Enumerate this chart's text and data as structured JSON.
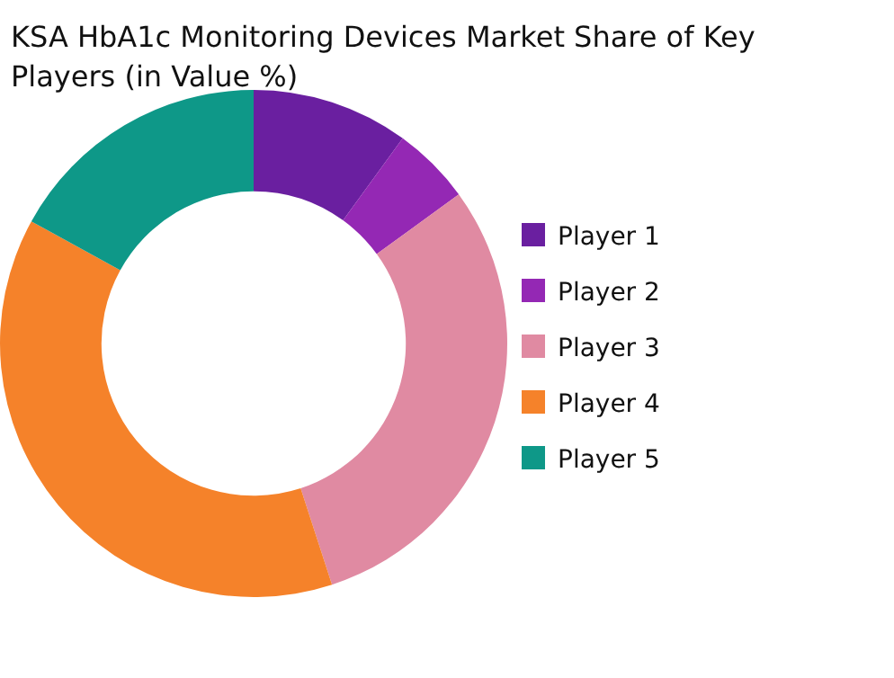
{
  "chart_data": {
    "type": "donut",
    "title": "KSA HbA1c Monitoring Devices Market Share of Key Players (in Value %)",
    "categories": [
      "Player 1",
      "Player 2",
      "Player 3",
      "Player 4",
      "Player 5"
    ],
    "values": [
      10,
      5,
      30,
      38,
      17
    ],
    "colors": [
      "#6a1fa0",
      "#9428b4",
      "#e08aa2",
      "#f5822a",
      "#0e9888"
    ],
    "legend": "right"
  }
}
